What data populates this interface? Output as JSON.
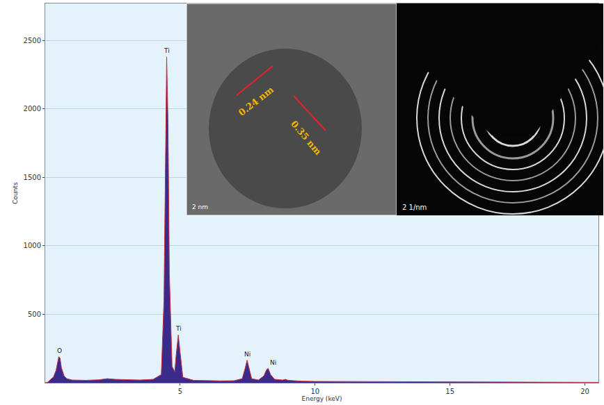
{
  "chart_data": {
    "type": "area",
    "color": "#3a2a8c",
    "x_label": "Energy (keV)",
    "y_label": "Counts",
    "x": [
      0.0,
      0.1,
      0.2,
      0.3,
      0.4,
      0.45,
      0.5,
      0.55,
      0.6,
      0.7,
      0.8,
      1.0,
      1.5,
      2.0,
      2.3,
      2.6,
      3.0,
      3.5,
      4.0,
      4.3,
      4.4,
      4.45,
      4.5,
      4.55,
      4.6,
      4.7,
      4.8,
      4.85,
      4.93,
      5.0,
      5.1,
      5.5,
      6.0,
      6.5,
      7.0,
      7.3,
      7.4,
      7.48,
      7.55,
      7.65,
      7.9,
      8.1,
      8.2,
      8.26,
      8.35,
      8.5,
      8.8,
      8.9,
      9.0,
      9.5,
      10.0,
      12.0,
      14.0,
      16.0,
      18.0,
      20.0,
      20.5
    ],
    "values": [
      0,
      5,
      25,
      40,
      90,
      150,
      190,
      180,
      110,
      50,
      30,
      20,
      18,
      22,
      30,
      25,
      22,
      20,
      25,
      60,
      600,
      1600,
      2380,
      1900,
      800,
      120,
      80,
      200,
      350,
      220,
      40,
      18,
      15,
      14,
      15,
      30,
      100,
      165,
      110,
      30,
      20,
      50,
      95,
      105,
      60,
      25,
      20,
      25,
      18,
      12,
      10,
      8,
      6,
      5,
      4,
      3,
      3
    ],
    "xlim": [
      0,
      20.5
    ],
    "xticks": [
      5,
      10,
      15,
      20
    ],
    "ylim": [
      0,
      2770
    ],
    "yticks": [
      500,
      1000,
      1500,
      2000,
      2500
    ],
    "grid": true,
    "annotations": [
      {
        "text": "O",
        "x": 0.52,
        "y": 200
      },
      {
        "text": "Ti",
        "x": 4.51,
        "y": 2390
      },
      {
        "text": "Ti",
        "x": 4.93,
        "y": 360
      },
      {
        "text": "Ni",
        "x": 7.48,
        "y": 175
      },
      {
        "text": "Ni",
        "x": 8.45,
        "y": 110
      }
    ],
    "insets": [
      {
        "labels": [
          "0.24 nm",
          "0.35 nm"
        ],
        "scale_bar": "2 nm"
      },
      {
        "scale_bar": "2 1/nm"
      }
    ]
  }
}
